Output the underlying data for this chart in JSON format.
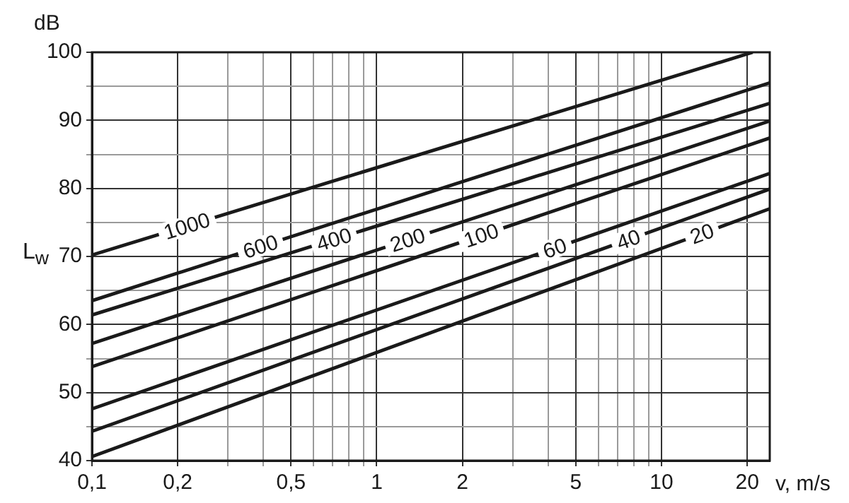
{
  "chart_data": {
    "type": "line",
    "xlabel": "v, m/s",
    "ylabel": "L$_{w}$",
    "annotations": [
      "dB"
    ],
    "log": "x",
    "grid": true,
    "legend": false,
    "marker": "none",
    "line_style": "solid",
    "xlim": [
      0.1,
      24
    ],
    "ylim": [
      40,
      100
    ],
    "xticks": [
      {
        "value": 0.1,
        "label": "0,1"
      },
      {
        "value": 0.2,
        "label": "0,2"
      },
      {
        "value": 0.3,
        "label": null
      },
      {
        "value": 0.4,
        "label": null
      },
      {
        "value": 0.5,
        "label": "0,5"
      },
      {
        "value": 0.6,
        "label": null
      },
      {
        "value": 0.7,
        "label": null
      },
      {
        "value": 0.8,
        "label": null
      },
      {
        "value": 0.9,
        "label": null
      },
      {
        "value": 1,
        "label": "1"
      },
      {
        "value": 2,
        "label": "2"
      },
      {
        "value": 3,
        "label": null
      },
      {
        "value": 4,
        "label": null
      },
      {
        "value": 5,
        "label": "5"
      },
      {
        "value": 6,
        "label": null
      },
      {
        "value": 7,
        "label": null
      },
      {
        "value": 8,
        "label": null
      },
      {
        "value": 9,
        "label": null
      },
      {
        "value": 10,
        "label": "10"
      },
      {
        "value": 20,
        "label": "20"
      }
    ],
    "yticks": [
      40,
      {
        "value": 45,
        "label": null
      },
      50,
      {
        "value": 55,
        "label": null
      },
      60,
      {
        "value": 65,
        "label": null
      },
      70,
      {
        "value": 75,
        "label": null
      },
      80,
      {
        "value": 85,
        "label": null
      },
      90,
      {
        "value": 95,
        "label": null
      },
      100
    ],
    "series": [
      {
        "name": "1000",
        "color": "#1a1a1a",
        "x": [
          0.1,
          20.9
        ],
        "values": [
          70.2,
          100
        ]
      },
      {
        "name": "600",
        "color": "#1a1a1a",
        "x": [
          0.1,
          24
        ],
        "values": [
          63.5,
          95.5
        ]
      },
      {
        "name": "400",
        "color": "#1a1a1a",
        "x": [
          0.1,
          24
        ],
        "values": [
          61.4,
          92.5
        ]
      },
      {
        "name": "200",
        "color": "#1a1a1a",
        "x": [
          0.1,
          24
        ],
        "values": [
          57.2,
          89.9
        ]
      },
      {
        "name": "100",
        "color": "#1a1a1a",
        "x": [
          0.1,
          24
        ],
        "values": [
          53.8,
          87.4
        ]
      },
      {
        "name": "60",
        "color": "#1a1a1a",
        "x": [
          0.1,
          24
        ],
        "values": [
          47.6,
          82.2
        ]
      },
      {
        "name": "40",
        "color": "#1a1a1a",
        "x": [
          0.1,
          24
        ],
        "values": [
          44.3,
          79.9
        ]
      },
      {
        "name": "20",
        "color": "#1a1a1a",
        "x": [
          0.1,
          24
        ],
        "values": [
          40.6,
          77.0
        ]
      }
    ]
  }
}
